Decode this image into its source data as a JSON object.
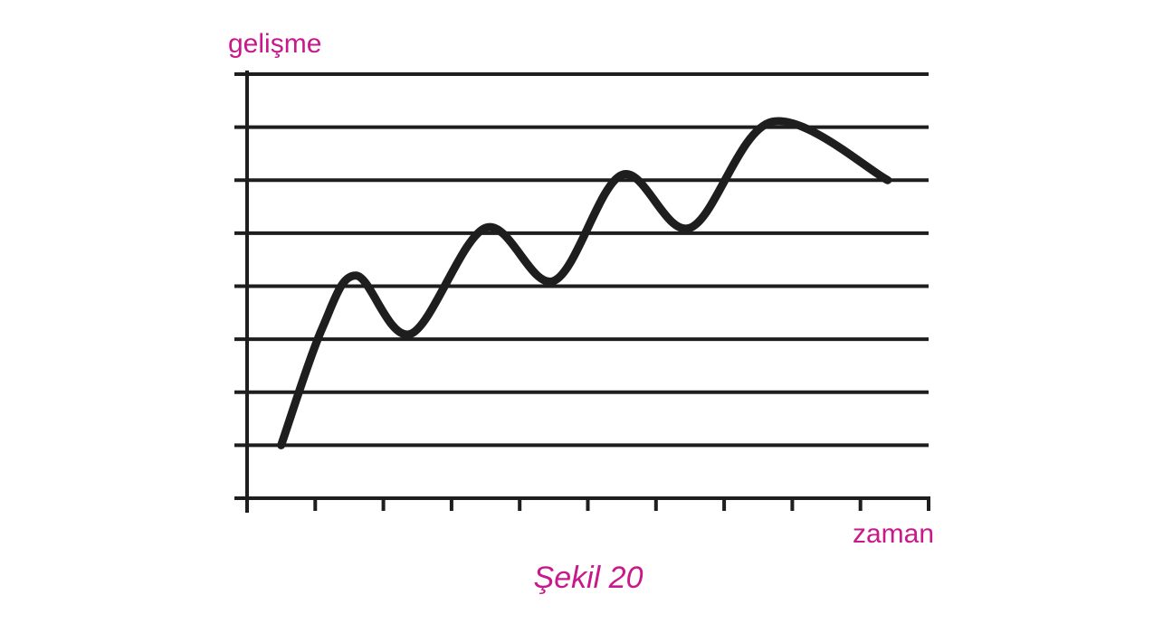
{
  "chart_data": {
    "type": "line",
    "title": "",
    "caption": "Şekil 20",
    "xlabel": "zaman",
    "ylabel": "gelişme",
    "xlim": [
      0,
      10
    ],
    "ylim": [
      0,
      8
    ],
    "grid": true,
    "series": [
      {
        "name": "gelişme",
        "x": [
          0.5,
          1.1,
          1.6,
          2.4,
          3.5,
          4.5,
          5.5,
          6.5,
          7.7,
          9.4
        ],
        "y": [
          1,
          3.2,
          4.2,
          3.1,
          5.1,
          4.1,
          6.1,
          5.1,
          7.1,
          6.0
        ]
      }
    ]
  },
  "colors": {
    "axis": "#1e1e1e",
    "line": "#1e1e1e",
    "label": "#c8198c"
  }
}
